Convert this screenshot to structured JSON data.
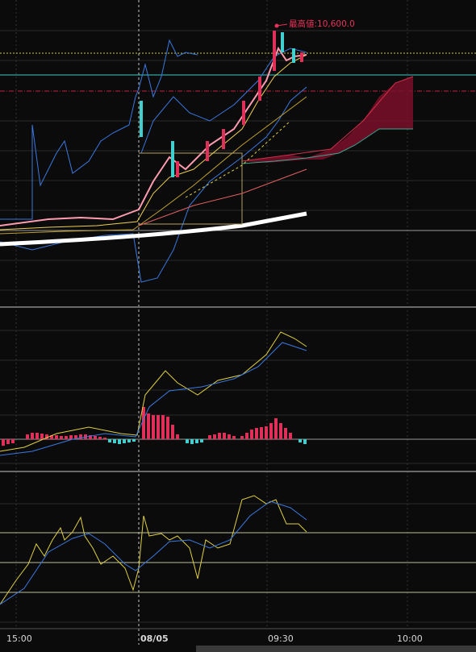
{
  "price_panel": {
    "annotation": "最高値:10,600.0"
  },
  "time_axis": {
    "labels": [
      "15:00",
      "08/05",
      "09:30",
      "10:00"
    ]
  }
}
